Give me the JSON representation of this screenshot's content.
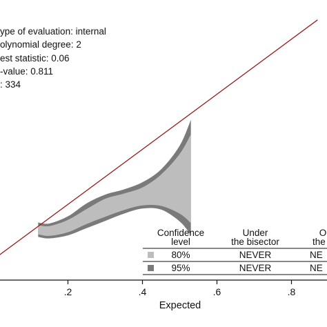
{
  "chart_data": {
    "type": "area",
    "title": "",
    "xlabel": "Expected",
    "ylabel": "",
    "xlim": [
      -0.01,
      0.87
    ],
    "ylim": [
      0.03,
      0.5
    ],
    "xticks": [
      0.2,
      0.4,
      0.6,
      0.8
    ],
    "xtick_labels": [
      ".2",
      ".4",
      ".6",
      ".8"
    ],
    "grid": false,
    "stats_box": [
      "ype of evaluation: internal",
      "olynomial degree: 2",
      "est statistic: 0.06",
      "-value: 0.811",
      ": 334"
    ],
    "reference_line": {
      "label": "bisector",
      "from": [
        -0.01,
        0.03
      ],
      "to": [
        0.87,
        0.5
      ]
    },
    "x": [
      0.12,
      0.15,
      0.2,
      0.25,
      0.3,
      0.35,
      0.4,
      0.45,
      0.5,
      0.53
    ],
    "series": [
      {
        "name": "95%",
        "color": "#7a7a7a",
        "lower": [
          0.079,
          0.076,
          0.082,
          0.096,
          0.11,
          0.124,
          0.134,
          0.132,
          0.109,
          0.083
        ],
        "upper": [
          0.107,
          0.105,
          0.119,
          0.144,
          0.161,
          0.171,
          0.185,
          0.21,
          0.256,
          0.306
        ]
      },
      {
        "name": "80%",
        "color": "#bdbdbd",
        "lower": [
          0.084,
          0.081,
          0.088,
          0.104,
          0.118,
          0.131,
          0.14,
          0.139,
          0.124,
          0.106
        ],
        "upper": [
          0.102,
          0.1,
          0.112,
          0.133,
          0.153,
          0.163,
          0.175,
          0.2,
          0.24,
          0.278
        ]
      }
    ],
    "legend": {
      "headers": [
        "Confidence\nlevel",
        "Under\nthe bisector",
        "O\nthe b"
      ],
      "rows": [
        {
          "swatch": "#bdbdbd",
          "level": "80%",
          "under": "NEVER",
          "over": "NE"
        },
        {
          "swatch": "#7a7a7a",
          "level": "95%",
          "under": "NEVER",
          "over": "NE"
        }
      ],
      "placement": "bottom-right"
    },
    "line_color": "#9b1b1b"
  }
}
